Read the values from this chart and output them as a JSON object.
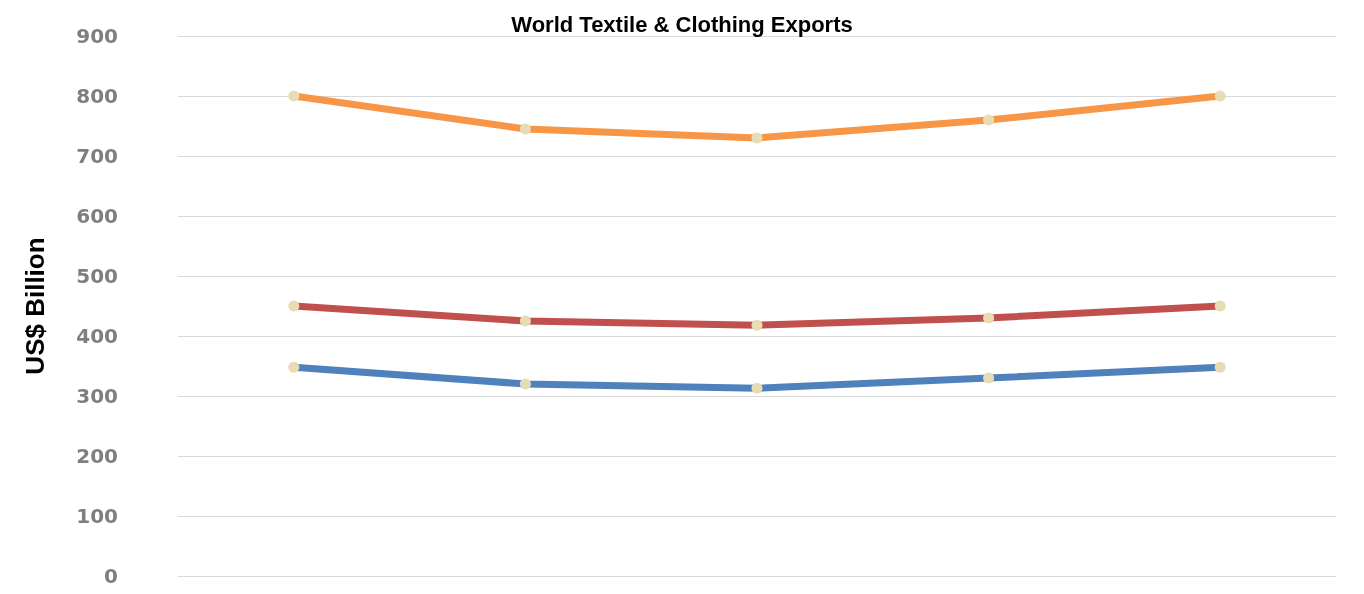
{
  "chart_data": {
    "type": "line",
    "title": "World Textile & Clothing Exports",
    "ylabel": "US$ Billion",
    "categories": [
      null,
      null,
      null,
      null,
      null
    ],
    "series": [
      {
        "color": "#f79646",
        "values": [
          800,
          745,
          730,
          760,
          800
        ]
      },
      {
        "color": "#c0504d",
        "values": [
          450,
          425,
          418,
          430,
          450
        ]
      },
      {
        "color": "#4f81bd",
        "values": [
          348,
          320,
          313,
          330,
          348
        ]
      }
    ],
    "ylim": [
      0,
      900
    ],
    "yticks": [
      0,
      100,
      200,
      300,
      400,
      500,
      600,
      700,
      800,
      900
    ],
    "grid": "y",
    "marker": "circle",
    "line_style": "solid"
  }
}
